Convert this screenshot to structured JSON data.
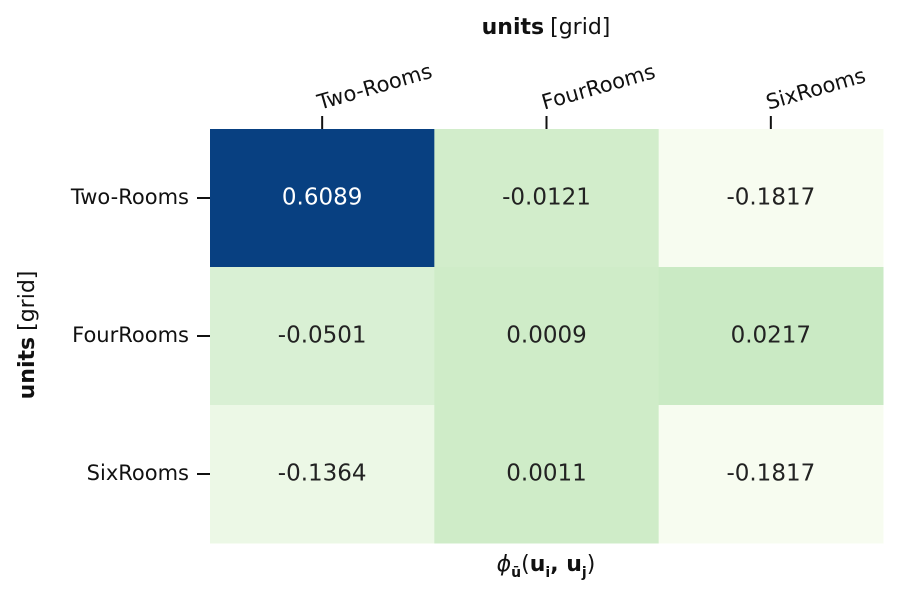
{
  "chart_data": {
    "type": "heatmap",
    "x_label": [
      "units",
      "[grid]"
    ],
    "y_label": [
      "units",
      "[grid]"
    ],
    "bottom_label": [
      {
        "text": "ϕ"
      },
      {
        "text": "ū",
        "sub": true
      },
      {
        "text": "(",
        "plain": true
      },
      {
        "text": "u"
      },
      {
        "text": "i",
        "sub": true
      },
      {
        "text": ", "
      },
      {
        "text": "u"
      },
      {
        "text": "j",
        "sub": true
      },
      {
        "text": ")",
        "plain": true
      }
    ],
    "x_categories": [
      "Two-Rooms",
      "FourRooms",
      "SixRooms"
    ],
    "y_categories": [
      "Two-Rooms",
      "FourRooms",
      "SixRooms"
    ],
    "values": [
      [
        0.6089,
        -0.0121,
        -0.1817
      ],
      [
        -0.0501,
        0.0009,
        0.0217
      ],
      [
        -0.1364,
        0.0011,
        -0.1817
      ]
    ],
    "colormap": [
      "#f7fcf0",
      "#e0f3db",
      "#ccebc5",
      "#a8ddb5",
      "#7bccc4",
      "#4eb3d3",
      "#2b8cbe",
      "#0868ac",
      "#084081"
    ]
  }
}
